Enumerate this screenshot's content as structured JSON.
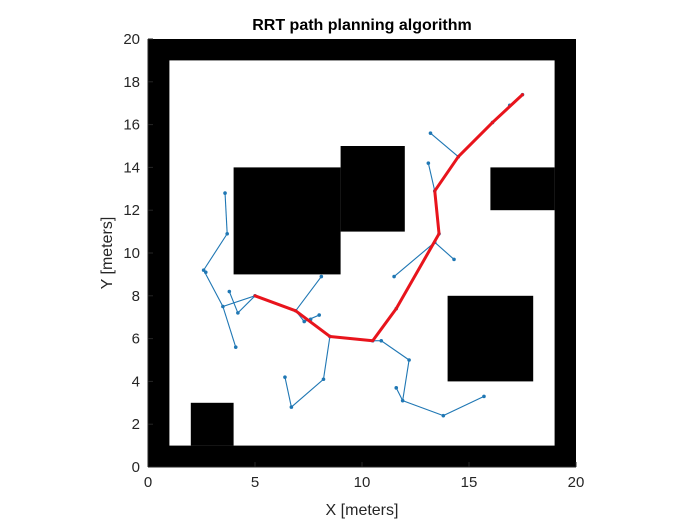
{
  "chart_data": {
    "type": "line",
    "title": "RRT path planning algorithm",
    "xlabel": "X [meters]",
    "ylabel": "Y [meters]",
    "xlim": [
      0,
      20
    ],
    "ylim": [
      0,
      20
    ],
    "xticks": [
      0,
      5,
      10,
      15,
      20
    ],
    "yticks": [
      0,
      2,
      4,
      6,
      8,
      10,
      12,
      14,
      16,
      18,
      20
    ],
    "grid": false,
    "legend": "none",
    "colors": {
      "obstacle": "#000000",
      "tree": "#1f77b4",
      "path": "#e8141c",
      "axis": "#262626"
    },
    "obstacles": [
      {
        "x0": 0,
        "x1": 1,
        "y0": 0,
        "y1": 20
      },
      {
        "x0": 19,
        "x1": 20,
        "y0": 0,
        "y1": 20
      },
      {
        "x0": 0,
        "x1": 20,
        "y0": 0,
        "y1": 1
      },
      {
        "x0": 0,
        "x1": 20,
        "y0": 19,
        "y1": 20
      },
      {
        "x0": 4,
        "x1": 9,
        "y0": 9,
        "y1": 14
      },
      {
        "x0": 9,
        "x1": 12,
        "y0": 11,
        "y1": 15
      },
      {
        "x0": 16,
        "x1": 19,
        "y0": 12,
        "y1": 14
      },
      {
        "x0": 14,
        "x1": 18,
        "y0": 4,
        "y1": 8
      },
      {
        "x0": 2,
        "x1": 4,
        "y0": 1,
        "y1": 3
      }
    ],
    "tree_edges": [
      [
        [
          5.0,
          8.0
        ],
        [
          3.5,
          7.5
        ]
      ],
      [
        [
          3.5,
          7.5
        ],
        [
          2.6,
          9.2
        ]
      ],
      [
        [
          2.6,
          9.2
        ],
        [
          2.7,
          9.1
        ]
      ],
      [
        [
          2.6,
          9.2
        ],
        [
          3.7,
          10.9
        ]
      ],
      [
        [
          3.7,
          10.9
        ],
        [
          3.6,
          12.8
        ]
      ],
      [
        [
          3.5,
          7.5
        ],
        [
          4.1,
          5.6
        ]
      ],
      [
        [
          5.0,
          8.0
        ],
        [
          4.2,
          7.2
        ]
      ],
      [
        [
          4.2,
          7.2
        ],
        [
          3.8,
          8.2
        ]
      ],
      [
        [
          5.0,
          8.0
        ],
        [
          6.9,
          7.3
        ]
      ],
      [
        [
          6.9,
          7.3
        ],
        [
          8.1,
          8.9
        ]
      ],
      [
        [
          6.9,
          7.3
        ],
        [
          7.3,
          6.8
        ]
      ],
      [
        [
          7.3,
          6.8
        ],
        [
          8.0,
          7.1
        ]
      ],
      [
        [
          7.3,
          6.8
        ],
        [
          7.6,
          6.9
        ]
      ],
      [
        [
          6.9,
          7.3
        ],
        [
          8.5,
          6.1
        ]
      ],
      [
        [
          8.5,
          6.1
        ],
        [
          8.2,
          4.1
        ]
      ],
      [
        [
          8.2,
          4.1
        ],
        [
          6.7,
          2.8
        ]
      ],
      [
        [
          6.7,
          2.8
        ],
        [
          6.4,
          4.2
        ]
      ],
      [
        [
          8.5,
          6.1
        ],
        [
          10.5,
          5.9
        ]
      ],
      [
        [
          10.5,
          5.9
        ],
        [
          10.9,
          5.9
        ]
      ],
      [
        [
          10.9,
          5.9
        ],
        [
          12.2,
          5.0
        ]
      ],
      [
        [
          12.2,
          5.0
        ],
        [
          11.9,
          3.1
        ]
      ],
      [
        [
          11.9,
          3.1
        ],
        [
          11.6,
          3.7
        ]
      ],
      [
        [
          11.9,
          3.1
        ],
        [
          13.8,
          2.4
        ]
      ],
      [
        [
          13.8,
          2.4
        ],
        [
          15.7,
          3.3
        ]
      ],
      [
        [
          10.5,
          5.9
        ],
        [
          11.6,
          7.4
        ]
      ],
      [
        [
          11.6,
          7.4
        ],
        [
          13.6,
          10.9
        ]
      ],
      [
        [
          13.6,
          10.9
        ],
        [
          13.4,
          10.5
        ]
      ],
      [
        [
          13.4,
          10.5
        ],
        [
          14.3,
          9.7
        ]
      ],
      [
        [
          13.4,
          10.5
        ],
        [
          11.5,
          8.9
        ]
      ],
      [
        [
          13.6,
          10.9
        ],
        [
          13.4,
          12.9
        ]
      ],
      [
        [
          13.4,
          12.9
        ],
        [
          13.1,
          14.2
        ]
      ],
      [
        [
          13.4,
          12.9
        ],
        [
          14.5,
          14.5
        ]
      ],
      [
        [
          14.5,
          14.5
        ],
        [
          13.2,
          15.6
        ]
      ],
      [
        [
          14.5,
          14.5
        ],
        [
          16.1,
          16.1
        ]
      ],
      [
        [
          16.1,
          16.1
        ],
        [
          16.9,
          16.9
        ]
      ],
      [
        [
          16.9,
          16.9
        ],
        [
          17.5,
          17.4
        ]
      ]
    ],
    "path": [
      [
        5.0,
        8.0
      ],
      [
        6.9,
        7.3
      ],
      [
        8.5,
        6.1
      ],
      [
        10.5,
        5.9
      ],
      [
        11.6,
        7.4
      ],
      [
        13.6,
        10.9
      ],
      [
        13.4,
        12.9
      ],
      [
        14.5,
        14.5
      ],
      [
        16.1,
        16.1
      ],
      [
        17.5,
        17.4
      ]
    ]
  }
}
